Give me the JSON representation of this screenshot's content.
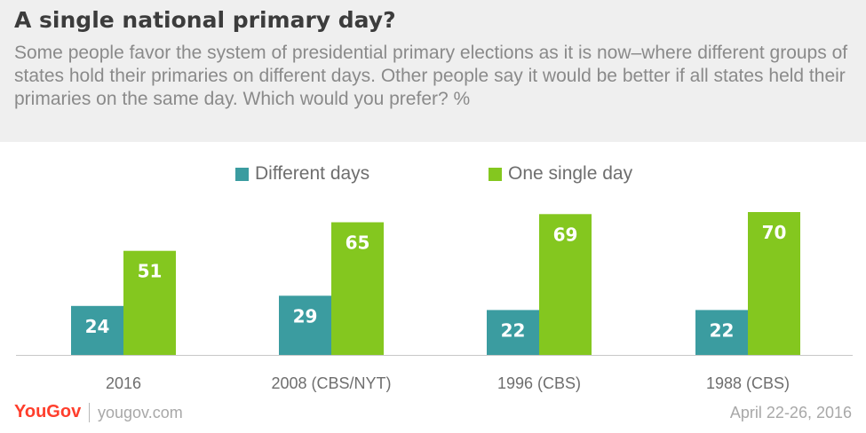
{
  "colors": {
    "different_days": "#3b9ca0",
    "one_single_day": "#84c71f",
    "axis": "#c8c8c8",
    "brand": "#ff3e2c"
  },
  "header": {
    "title": "A single national primary day?",
    "subtitle": "Some people favor the system of presidential primary elections as it is now–where different groups of states hold their primaries on different days. Other people say it would be better if all states held their primaries on the same day. Which would you prefer? %"
  },
  "legend": [
    {
      "label": "Different days",
      "color": "#3b9ca0"
    },
    {
      "label": "One single day",
      "color": "#84c71f"
    }
  ],
  "chart_data": {
    "type": "bar",
    "title": "A single national primary day?",
    "categories": [
      "2016",
      "2008 (CBS/NYT)",
      "1996 (CBS)",
      "1988 (CBS)"
    ],
    "series": [
      {
        "name": "Different days",
        "values": [
          24,
          29,
          22,
          22
        ],
        "color": "#3b9ca0"
      },
      {
        "name": "One single day",
        "values": [
          51,
          65,
          69,
          70
        ],
        "color": "#84c71f"
      }
    ],
    "xlabel": "",
    "ylabel": "",
    "ylim": [
      0,
      70
    ],
    "grid": false,
    "legend_position": "top-center",
    "data_labels": true
  },
  "footer": {
    "logo": "YouGov",
    "url": "yougov.com",
    "date": "April 22-26, 2016"
  }
}
